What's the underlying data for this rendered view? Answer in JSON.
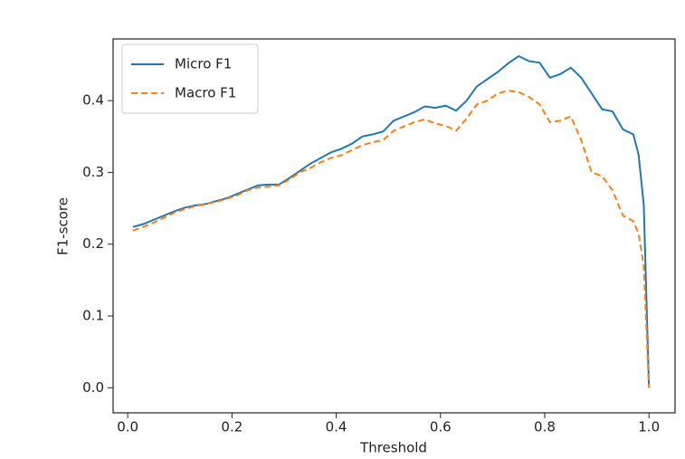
{
  "chart_data": {
    "type": "line",
    "xlabel": "Threshold",
    "ylabel": "F1-score",
    "x": [
      0.01,
      0.03,
      0.05,
      0.07,
      0.09,
      0.11,
      0.13,
      0.15,
      0.17,
      0.19,
      0.21,
      0.23,
      0.25,
      0.27,
      0.29,
      0.31,
      0.33,
      0.35,
      0.37,
      0.39,
      0.41,
      0.43,
      0.45,
      0.47,
      0.49,
      0.51,
      0.53,
      0.55,
      0.57,
      0.59,
      0.61,
      0.63,
      0.65,
      0.67,
      0.69,
      0.71,
      0.73,
      0.75,
      0.77,
      0.79,
      0.81,
      0.83,
      0.85,
      0.87,
      0.89,
      0.91,
      0.93,
      0.95,
      0.97,
      0.98,
      0.99,
      1.0
    ],
    "series": [
      {
        "name": "Micro F1",
        "color": "#1f77b4",
        "linestyle": "solid",
        "values": [
          0.224,
          0.228,
          0.234,
          0.24,
          0.246,
          0.251,
          0.254,
          0.256,
          0.26,
          0.264,
          0.27,
          0.276,
          0.282,
          0.283,
          0.283,
          0.292,
          0.302,
          0.312,
          0.32,
          0.328,
          0.333,
          0.34,
          0.35,
          0.353,
          0.357,
          0.372,
          0.378,
          0.384,
          0.392,
          0.39,
          0.393,
          0.386,
          0.4,
          0.42,
          0.43,
          0.44,
          0.452,
          0.462,
          0.455,
          0.453,
          0.432,
          0.437,
          0.446,
          0.432,
          0.41,
          0.388,
          0.385,
          0.36,
          0.353,
          0.325,
          0.255,
          0.0
        ]
      },
      {
        "name": "Macro F1",
        "color": "#ff7f0e",
        "linestyle": "dashed",
        "values": [
          0.219,
          0.224,
          0.23,
          0.237,
          0.244,
          0.249,
          0.253,
          0.256,
          0.259,
          0.263,
          0.268,
          0.275,
          0.279,
          0.28,
          0.282,
          0.29,
          0.3,
          0.306,
          0.314,
          0.32,
          0.324,
          0.331,
          0.338,
          0.342,
          0.345,
          0.358,
          0.364,
          0.37,
          0.374,
          0.368,
          0.365,
          0.358,
          0.375,
          0.395,
          0.4,
          0.41,
          0.414,
          0.412,
          0.405,
          0.395,
          0.37,
          0.372,
          0.378,
          0.345,
          0.3,
          0.295,
          0.275,
          0.24,
          0.232,
          0.215,
          0.17,
          0.0
        ]
      }
    ],
    "xlim": [
      -0.028,
      1.05
    ],
    "xticks": [
      {
        "value": 0,
        "label": "0.0"
      },
      0.2,
      0.4,
      0.6,
      0.8,
      {
        "value": 1,
        "label": "1.0"
      }
    ],
    "ylim": [
      -0.035,
      0.486
    ],
    "yticks": [
      {
        "value": 0,
        "label": "0.0"
      },
      0.1,
      0.2,
      0.3,
      0.4
    ],
    "grid": false,
    "legend": "upper left"
  }
}
